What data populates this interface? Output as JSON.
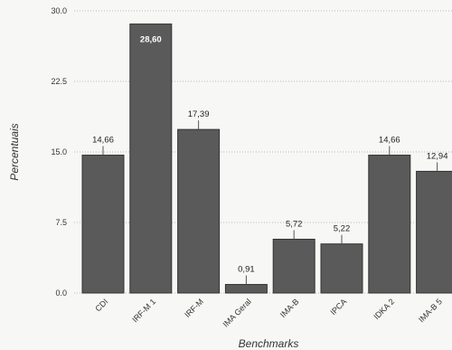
{
  "chart_data": {
    "type": "bar",
    "categories": [
      "CDI",
      "IRF-M 1",
      "IRF-M",
      "IMA Geral",
      "IMA-B",
      "IPCA",
      "IDKA 2",
      "IMA-B 5"
    ],
    "values": [
      14.66,
      28.6,
      17.39,
      0.91,
      5.72,
      5.22,
      14.66,
      12.94
    ],
    "value_labels": [
      "14,66",
      "28,60",
      "17,39",
      "0,91",
      "5,72",
      "5,22",
      "14,66",
      "12,94"
    ],
    "xlabel": "Benchmarks",
    "ylabel": "Percentuais",
    "ylim": [
      0,
      30
    ],
    "y_ticks": [
      0,
      7.5,
      15,
      22.5,
      30
    ],
    "y_tick_labels": [
      "0.0",
      "7.5",
      "15.0",
      "22.5",
      "30.0"
    ],
    "grid": true,
    "bar_color": "#5a5a5a"
  }
}
